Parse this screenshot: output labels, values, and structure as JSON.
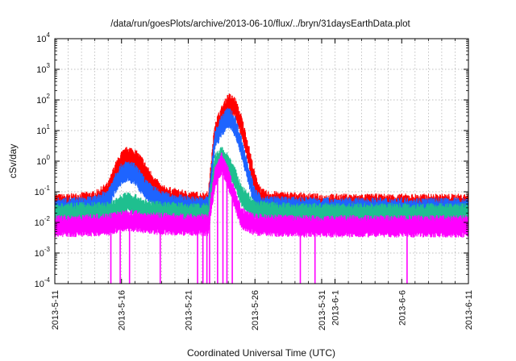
{
  "chart_data": {
    "type": "line",
    "title": "/data/run/goesPlots/archive/2013-06-10/flux/../bryn/31daysEarthData.plot",
    "xlabel": "Coordinated Universal Time (UTC)",
    "ylabel": "cSv/day",
    "yscale": "log",
    "ylim": [
      0.0001,
      10000
    ],
    "xlim": [
      "2013-05-11",
      "2013-06-11"
    ],
    "grid": true,
    "y_ticks": [
      {
        "base": "10",
        "exp": "-4"
      },
      {
        "base": "10",
        "exp": "-3"
      },
      {
        "base": "10",
        "exp": "-2"
      },
      {
        "base": "10",
        "exp": "-1"
      },
      {
        "base": "10",
        "exp": "0"
      },
      {
        "base": "10",
        "exp": "1"
      },
      {
        "base": "10",
        "exp": "2"
      },
      {
        "base": "10",
        "exp": "3"
      },
      {
        "base": "10",
        "exp": "4"
      }
    ],
    "x_ticks": [
      "2013-5-11",
      "2013-5-16",
      "2013-5-21",
      "2013-5-26",
      "2013-5-31",
      "2013-6-1",
      "2013-6-6",
      "2013-6-11"
    ],
    "x_tick_days": [
      0,
      5,
      10,
      15,
      20,
      21,
      26,
      31
    ],
    "minor_x_ticks_days": [
      1,
      2,
      3,
      4,
      6,
      7,
      8,
      9,
      11,
      12,
      13,
      14,
      16,
      17,
      18,
      19,
      22,
      23,
      24,
      25,
      27,
      28,
      29,
      30
    ],
    "series": [
      {
        "color": "#ff0000",
        "points": [
          [
            0,
            0.04
          ],
          [
            1,
            0.04
          ],
          [
            2,
            0.045
          ],
          [
            3,
            0.05
          ],
          [
            4,
            0.1
          ],
          [
            4.5,
            0.4
          ],
          [
            5,
            1.0
          ],
          [
            5.5,
            1.5
          ],
          [
            6,
            1.2
          ],
          [
            6.5,
            0.7
          ],
          [
            7,
            0.3
          ],
          [
            7.5,
            0.15
          ],
          [
            8,
            0.08
          ],
          [
            9,
            0.06
          ],
          [
            10,
            0.05
          ],
          [
            11,
            0.045
          ],
          [
            11.5,
            0.05
          ],
          [
            12,
            10
          ],
          [
            12.5,
            30
          ],
          [
            13,
            80
          ],
          [
            13.5,
            60
          ],
          [
            14,
            15
          ],
          [
            14.5,
            2
          ],
          [
            15,
            0.2
          ],
          [
            15.5,
            0.06
          ],
          [
            16,
            0.05
          ],
          [
            18,
            0.045
          ],
          [
            20,
            0.04
          ],
          [
            22,
            0.04
          ],
          [
            24,
            0.04
          ],
          [
            26,
            0.04
          ],
          [
            28,
            0.04
          ],
          [
            31,
            0.04
          ]
        ]
      },
      {
        "color": "#1e64ff",
        "points": [
          [
            0,
            0.03
          ],
          [
            2,
            0.032
          ],
          [
            3,
            0.035
          ],
          [
            4,
            0.06
          ],
          [
            4.5,
            0.2
          ],
          [
            5,
            0.4
          ],
          [
            5.5,
            0.5
          ],
          [
            6,
            0.4
          ],
          [
            6.5,
            0.2
          ],
          [
            7,
            0.1
          ],
          [
            8,
            0.05
          ],
          [
            9,
            0.04
          ],
          [
            10,
            0.035
          ],
          [
            11,
            0.032
          ],
          [
            11.5,
            0.035
          ],
          [
            12,
            5
          ],
          [
            12.5,
            15
          ],
          [
            13,
            30
          ],
          [
            13.5,
            15
          ],
          [
            14,
            3
          ],
          [
            14.5,
            0.4
          ],
          [
            15,
            0.06
          ],
          [
            15.5,
            0.035
          ],
          [
            18,
            0.032
          ],
          [
            22,
            0.03
          ],
          [
            26,
            0.03
          ],
          [
            31,
            0.03
          ]
        ]
      },
      {
        "color": "#1fbf8f",
        "points": [
          [
            0,
            0.02
          ],
          [
            4,
            0.022
          ],
          [
            5,
            0.04
          ],
          [
            5.5,
            0.05
          ],
          [
            6,
            0.04
          ],
          [
            7,
            0.025
          ],
          [
            10,
            0.02
          ],
          [
            11.5,
            0.02
          ],
          [
            12,
            0.8
          ],
          [
            12.5,
            1.5
          ],
          [
            13,
            0.8
          ],
          [
            13.5,
            0.3
          ],
          [
            14,
            0.08
          ],
          [
            15,
            0.025
          ],
          [
            18,
            0.02
          ],
          [
            31,
            0.02
          ]
        ]
      },
      {
        "color": "#ff00ff",
        "points": [
          [
            0,
            0.008
          ],
          [
            4,
            0.009
          ],
          [
            5,
            0.012
          ],
          [
            6,
            0.012
          ],
          [
            7,
            0.01
          ],
          [
            10,
            0.009
          ],
          [
            11.5,
            0.009
          ],
          [
            12,
            0.3
          ],
          [
            12.5,
            0.9
          ],
          [
            13,
            0.3
          ],
          [
            13.5,
            0.06
          ],
          [
            14,
            0.015
          ],
          [
            15,
            0.009
          ],
          [
            18,
            0.008
          ],
          [
            31,
            0.008
          ]
        ],
        "dropouts_days": [
          4.2,
          4.9,
          5.6,
          7.9,
          10.7,
          11.1,
          11.4,
          11.6,
          12.2,
          12.6,
          12.9,
          13.3,
          18.4,
          19.5,
          26.4
        ]
      }
    ]
  }
}
